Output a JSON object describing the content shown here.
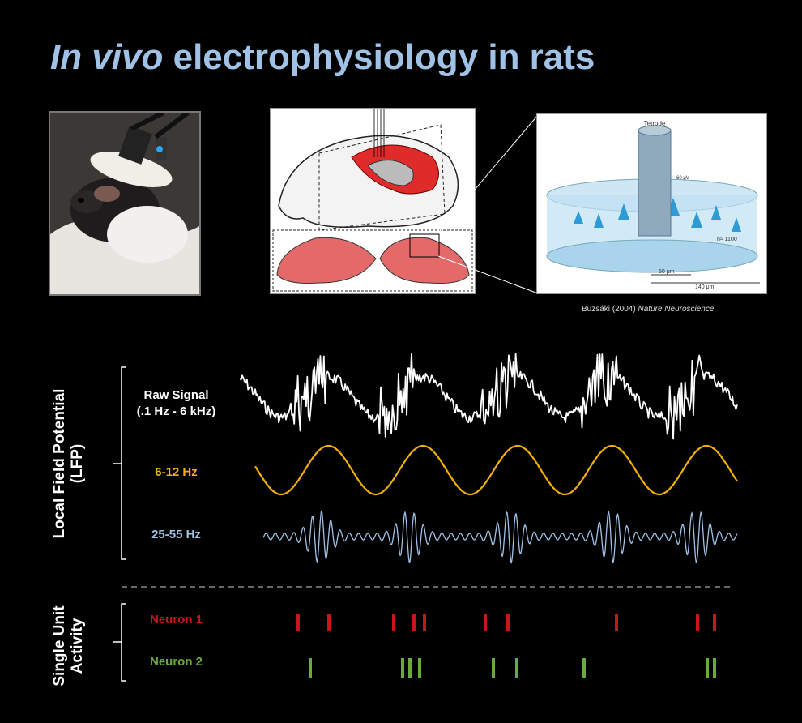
{
  "title": {
    "italic": "In vivo",
    "rest": " electrophysiology in rats"
  },
  "credit": {
    "text": "Buzsáki (2004) ",
    "journal": "Nature Neuroscience"
  },
  "tetrode_fig": {
    "label": "Tetrode",
    "scale1": "50 μm",
    "scale2": "140 μm",
    "n_label": "n≈ 1100",
    "volt": "60 μV"
  },
  "lfp": {
    "axis_label_line1": "Local Field Potential",
    "axis_label_line2": "(LFP)",
    "raw": {
      "line1": "Raw Signal",
      "line2": "(.1 Hz - 6 kHz)",
      "color": "#ffffff"
    },
    "theta": {
      "label": "6-12 Hz",
      "color": "#f2b100"
    },
    "gamma": {
      "label": "25-55 Hz",
      "color": "#9fc2e6"
    }
  },
  "units": {
    "axis_label_line1": "Single Unit",
    "axis_label_line2": "Activity",
    "neuron1": {
      "label": "Neuron 1",
      "color": "#c8161d"
    },
    "neuron2": {
      "label": "Neuron 2",
      "color": "#6aab3e"
    }
  }
}
